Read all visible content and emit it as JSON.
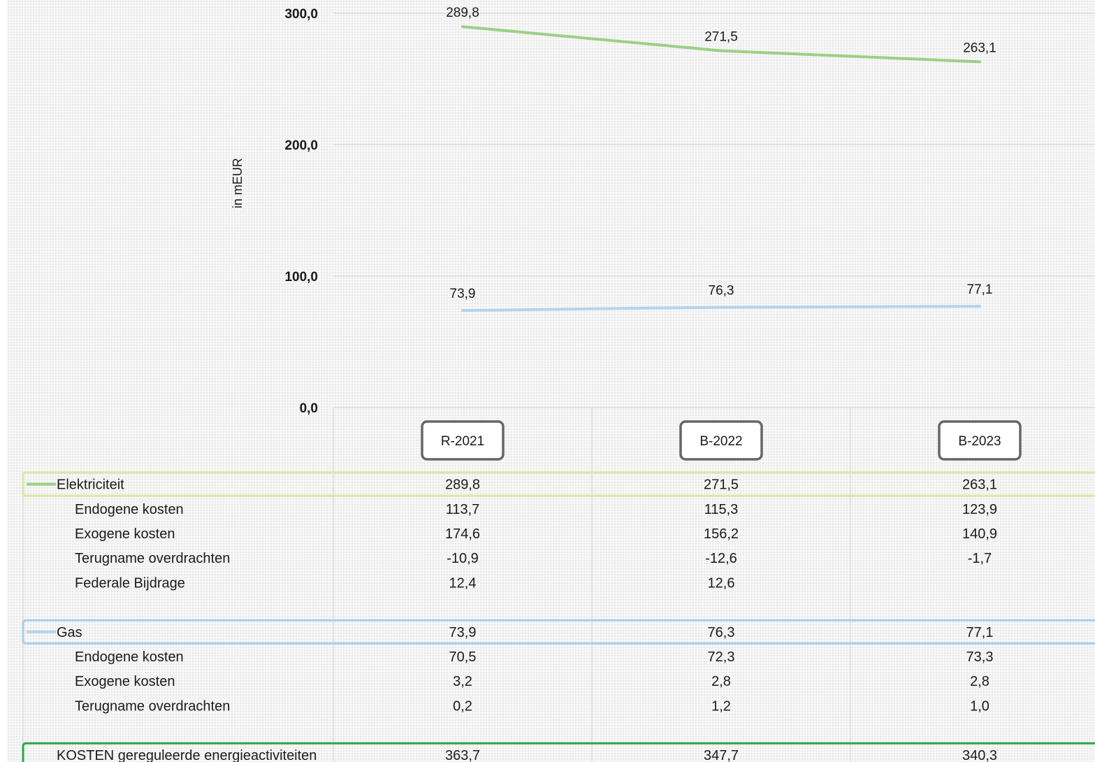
{
  "colors": {
    "elektriciteit": "#9dcf86",
    "gas": "#b4d3ec",
    "elektriciteit_box": "#dbe8a6",
    "gas_box": "#a9cdee",
    "total_box": "#2aa553",
    "grid": "#d9d9d9",
    "category_box": "#666666"
  },
  "chart_data": {
    "type": "line",
    "ylabel": "in mEUR",
    "ylim": [
      0,
      300
    ],
    "yticks": [
      0,
      100,
      200,
      300
    ],
    "ytick_labels": [
      "0,0",
      "100,0",
      "200,0",
      "300,0"
    ],
    "grid": true,
    "categories": [
      "R-2021",
      "B-2022",
      "B-2023"
    ],
    "series": [
      {
        "name": "Elektriciteit",
        "color": "#9dcf86",
        "values": [
          289.8,
          271.5,
          263.1
        ],
        "labels": [
          "289,8",
          "271,5",
          "263,1"
        ]
      },
      {
        "name": "Gas",
        "color": "#b4d3ec",
        "values": [
          73.9,
          76.3,
          77.1
        ],
        "labels": [
          "73,9",
          "76,3",
          "77,1"
        ]
      }
    ]
  },
  "table": {
    "rows": [
      {
        "label": "Elektriciteit",
        "indent": 0,
        "legend": "elektriciteit",
        "box": "elektriciteit_box",
        "values": [
          "289,8",
          "271,5",
          "263,1"
        ]
      },
      {
        "label": "Endogene kosten",
        "indent": 1,
        "values": [
          "113,7",
          "115,3",
          "123,9"
        ]
      },
      {
        "label": "Exogene kosten",
        "indent": 1,
        "values": [
          "174,6",
          "156,2",
          "140,9"
        ]
      },
      {
        "label": "Terugname overdrachten",
        "indent": 1,
        "values": [
          "-10,9",
          "-12,6",
          "-1,7"
        ]
      },
      {
        "label": "Federale Bijdrage",
        "indent": 1,
        "values": [
          "12,4",
          "12,6",
          ""
        ]
      },
      {
        "label": "",
        "indent": 0,
        "values": [
          "",
          "",
          ""
        ]
      },
      {
        "label": "Gas",
        "indent": 0,
        "legend": "gas",
        "box": "gas_box",
        "values": [
          "73,9",
          "76,3",
          "77,1"
        ]
      },
      {
        "label": "Endogene kosten",
        "indent": 1,
        "values": [
          "70,5",
          "72,3",
          "73,3"
        ]
      },
      {
        "label": "Exogene kosten",
        "indent": 1,
        "values": [
          "3,2",
          "2,8",
          "2,8"
        ]
      },
      {
        "label": "Terugname overdrachten",
        "indent": 1,
        "values": [
          "0,2",
          "1,2",
          "1,0"
        ]
      },
      {
        "label": "",
        "indent": 0,
        "values": [
          "",
          "",
          ""
        ]
      },
      {
        "label": "KOSTEN gereguleerde energieactiviteiten",
        "indent": 0,
        "box": "total_box",
        "values": [
          "363,7",
          "347,7",
          "340,3"
        ]
      }
    ]
  }
}
